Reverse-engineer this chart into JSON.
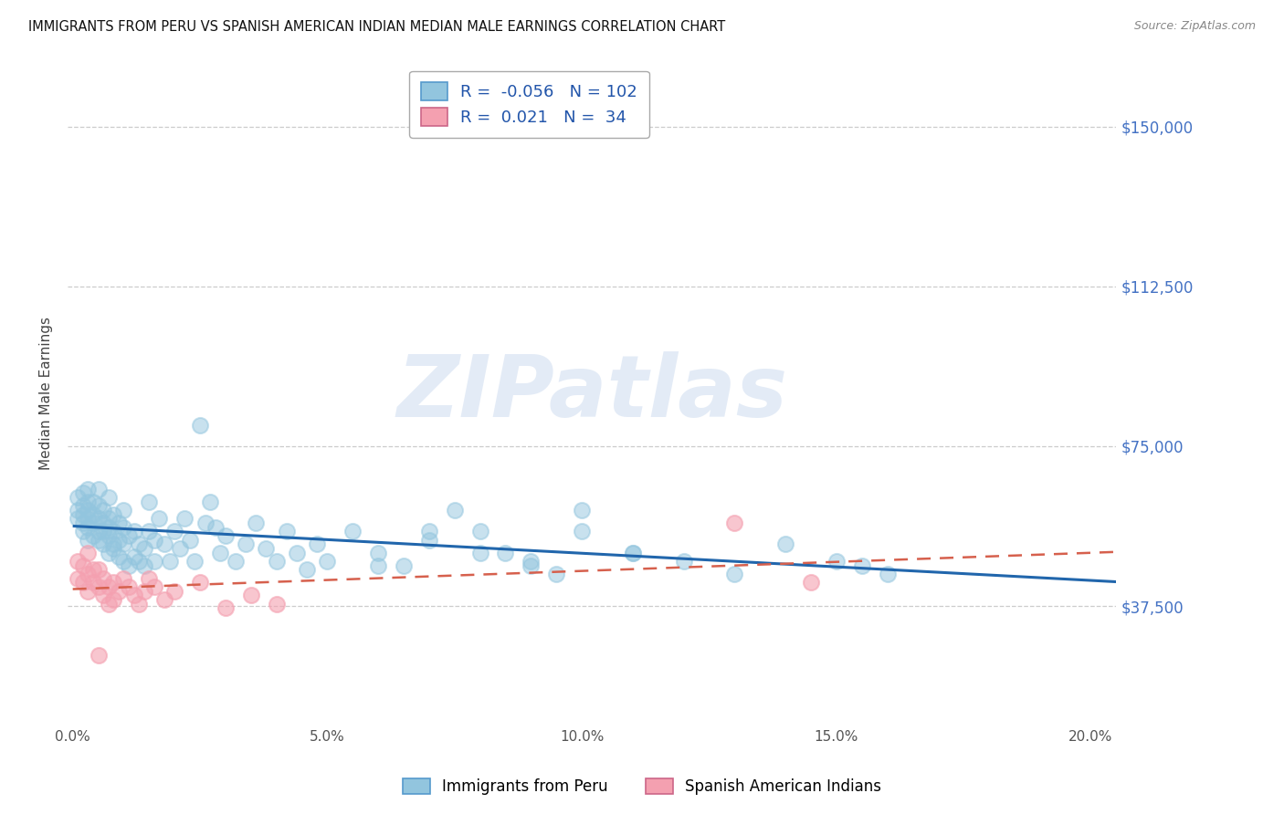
{
  "title": "IMMIGRANTS FROM PERU VS SPANISH AMERICAN INDIAN MEDIAN MALE EARNINGS CORRELATION CHART",
  "source": "Source: ZipAtlas.com",
  "ylabel": "Median Male Earnings",
  "ytick_labels": [
    "$37,500",
    "$75,000",
    "$112,500",
    "$150,000"
  ],
  "ytick_vals": [
    37500,
    75000,
    112500,
    150000
  ],
  "ylim": [
    10000,
    165000
  ],
  "xlim": [
    -0.001,
    0.205
  ],
  "xlabel_vals": [
    0.0,
    0.05,
    0.1,
    0.15,
    0.2
  ],
  "xlabel_ticks": [
    "0.0%",
    "5.0%",
    "10.0%",
    "15.0%",
    "20.0%"
  ],
  "r_peru": -0.056,
  "n_peru": 102,
  "r_spanish": 0.021,
  "n_spanish": 34,
  "legend_label_peru": "Immigrants from Peru",
  "legend_label_spanish": "Spanish American Indians",
  "blue_color": "#92c5de",
  "blue_line_color": "#2166ac",
  "pink_color": "#f4a582",
  "pink_scatter_color": "#f4a0b0",
  "pink_line_color": "#d6604d",
  "watermark": "ZIPatlas",
  "peru_x": [
    0.001,
    0.001,
    0.001,
    0.002,
    0.002,
    0.002,
    0.002,
    0.002,
    0.003,
    0.003,
    0.003,
    0.003,
    0.003,
    0.003,
    0.004,
    0.004,
    0.004,
    0.004,
    0.005,
    0.005,
    0.005,
    0.005,
    0.005,
    0.006,
    0.006,
    0.006,
    0.006,
    0.007,
    0.007,
    0.007,
    0.007,
    0.007,
    0.008,
    0.008,
    0.008,
    0.008,
    0.009,
    0.009,
    0.009,
    0.01,
    0.01,
    0.01,
    0.01,
    0.011,
    0.011,
    0.012,
    0.012,
    0.013,
    0.013,
    0.014,
    0.014,
    0.015,
    0.015,
    0.016,
    0.016,
    0.017,
    0.018,
    0.019,
    0.02,
    0.021,
    0.022,
    0.023,
    0.024,
    0.025,
    0.026,
    0.027,
    0.028,
    0.029,
    0.03,
    0.032,
    0.034,
    0.036,
    0.038,
    0.04,
    0.042,
    0.044,
    0.046,
    0.048,
    0.05,
    0.055,
    0.06,
    0.065,
    0.07,
    0.075,
    0.08,
    0.085,
    0.09,
    0.095,
    0.1,
    0.11,
    0.12,
    0.13,
    0.14,
    0.15,
    0.06,
    0.07,
    0.08,
    0.09,
    0.1,
    0.11,
    0.155,
    0.16
  ],
  "peru_y": [
    60000,
    58000,
    63000,
    57000,
    61000,
    55000,
    64000,
    59000,
    56000,
    62000,
    58000,
    65000,
    53000,
    60000,
    54000,
    59000,
    57000,
    62000,
    55000,
    58000,
    61000,
    53000,
    65000,
    52000,
    57000,
    55000,
    60000,
    50000,
    54000,
    58000,
    56000,
    63000,
    51000,
    55000,
    59000,
    52000,
    49000,
    53000,
    57000,
    48000,
    52000,
    56000,
    60000,
    47000,
    54000,
    49000,
    55000,
    48000,
    52000,
    47000,
    51000,
    55000,
    62000,
    48000,
    53000,
    58000,
    52000,
    48000,
    55000,
    51000,
    58000,
    53000,
    48000,
    80000,
    57000,
    62000,
    56000,
    50000,
    54000,
    48000,
    52000,
    57000,
    51000,
    48000,
    55000,
    50000,
    46000,
    52000,
    48000,
    55000,
    50000,
    47000,
    53000,
    60000,
    55000,
    50000,
    48000,
    45000,
    55000,
    50000,
    48000,
    45000,
    52000,
    48000,
    47000,
    55000,
    50000,
    47000,
    60000,
    50000,
    47000,
    45000
  ],
  "spanish_x": [
    0.001,
    0.001,
    0.002,
    0.002,
    0.003,
    0.003,
    0.003,
    0.004,
    0.004,
    0.005,
    0.005,
    0.006,
    0.006,
    0.007,
    0.007,
    0.008,
    0.008,
    0.009,
    0.01,
    0.011,
    0.012,
    0.013,
    0.014,
    0.015,
    0.016,
    0.018,
    0.02,
    0.025,
    0.03,
    0.035,
    0.04,
    0.13,
    0.145,
    0.005
  ],
  "spanish_y": [
    48000,
    44000,
    43000,
    47000,
    41000,
    45000,
    50000,
    43000,
    46000,
    42000,
    46000,
    40000,
    44000,
    42000,
    38000,
    39000,
    43000,
    41000,
    44000,
    42000,
    40000,
    38000,
    41000,
    44000,
    42000,
    39000,
    41000,
    43000,
    37000,
    40000,
    38000,
    57000,
    43000,
    26000
  ]
}
